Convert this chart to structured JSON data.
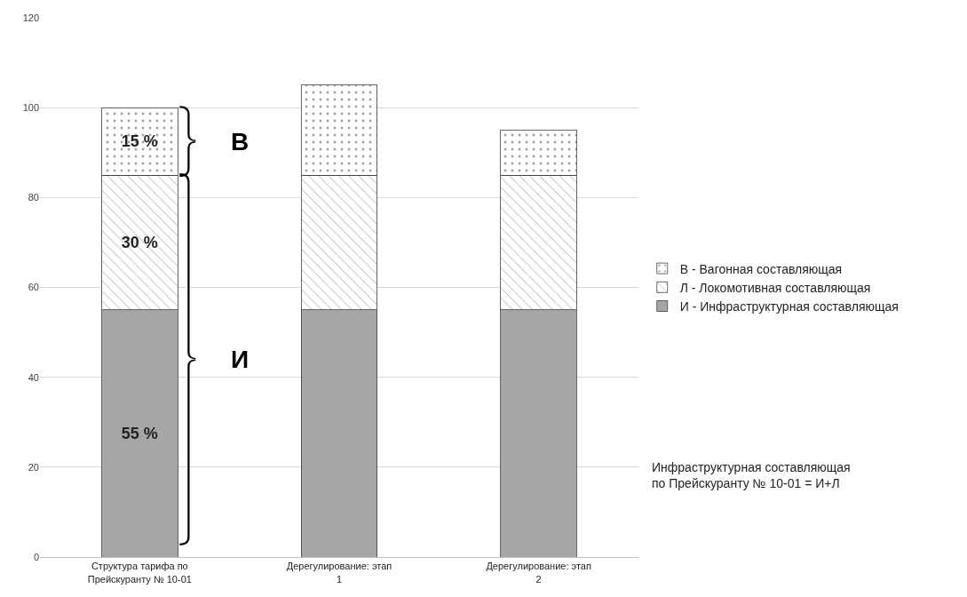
{
  "chart_data": {
    "type": "bar",
    "stacked": true,
    "categories": [
      "Структура тарифа по Прейскуранту № 10-01",
      "Дерегулирование: этап 1",
      "Дерегулирование: этап 2"
    ],
    "series": [
      {
        "name": "И - Инфраструктурная составляющая",
        "color": "#a6a6a6",
        "values": [
          55,
          55,
          55
        ],
        "value_labels": [
          "55 %",
          null,
          null
        ]
      },
      {
        "name": "Л - Локомотивная составляющая",
        "color": "#404040",
        "values": [
          30,
          30,
          30
        ],
        "value_labels": [
          "30 %",
          null,
          null
        ]
      },
      {
        "name": "В - Вагонная составляющая",
        "color": "#404040",
        "values": [
          15,
          20,
          10
        ],
        "value_labels": [
          "15 %",
          null,
          null
        ]
      }
    ],
    "ylim": [
      0,
      120
    ],
    "yticks": [
      0,
      20,
      40,
      60,
      80,
      100,
      120
    ],
    "grid": "y",
    "legend": "right",
    "annotations": [
      "В",
      "И",
      "Инфраструктурная составляющая\nпо Прейскуранту № 10-01 = И+Л"
    ]
  }
}
